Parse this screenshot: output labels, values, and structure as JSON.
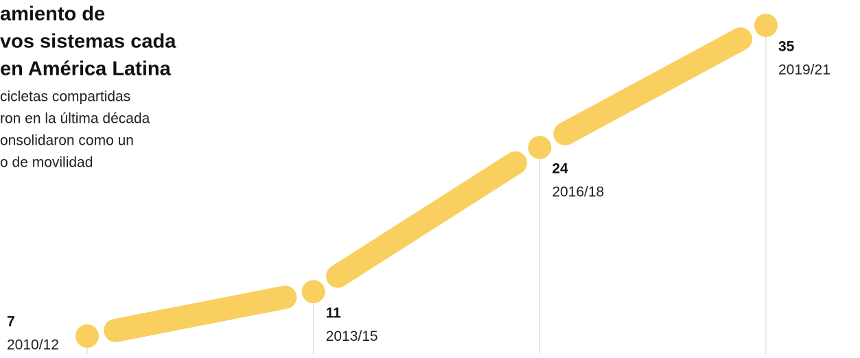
{
  "chart_data": {
    "type": "line",
    "title": [
      "amiento de",
      "vos sistemas cada",
      "en América Latina"
    ],
    "subtitle": [
      "cicletas compartidas",
      "ron en la última década",
      "onsolidaron como un",
      "o de movilidad"
    ],
    "categories": [
      "2010/12",
      "2013/15",
      "2016/18",
      "2019/21"
    ],
    "values": [
      7,
      11,
      24,
      35
    ],
    "color": "#f9cf5f",
    "ylim": [
      7,
      35
    ]
  }
}
